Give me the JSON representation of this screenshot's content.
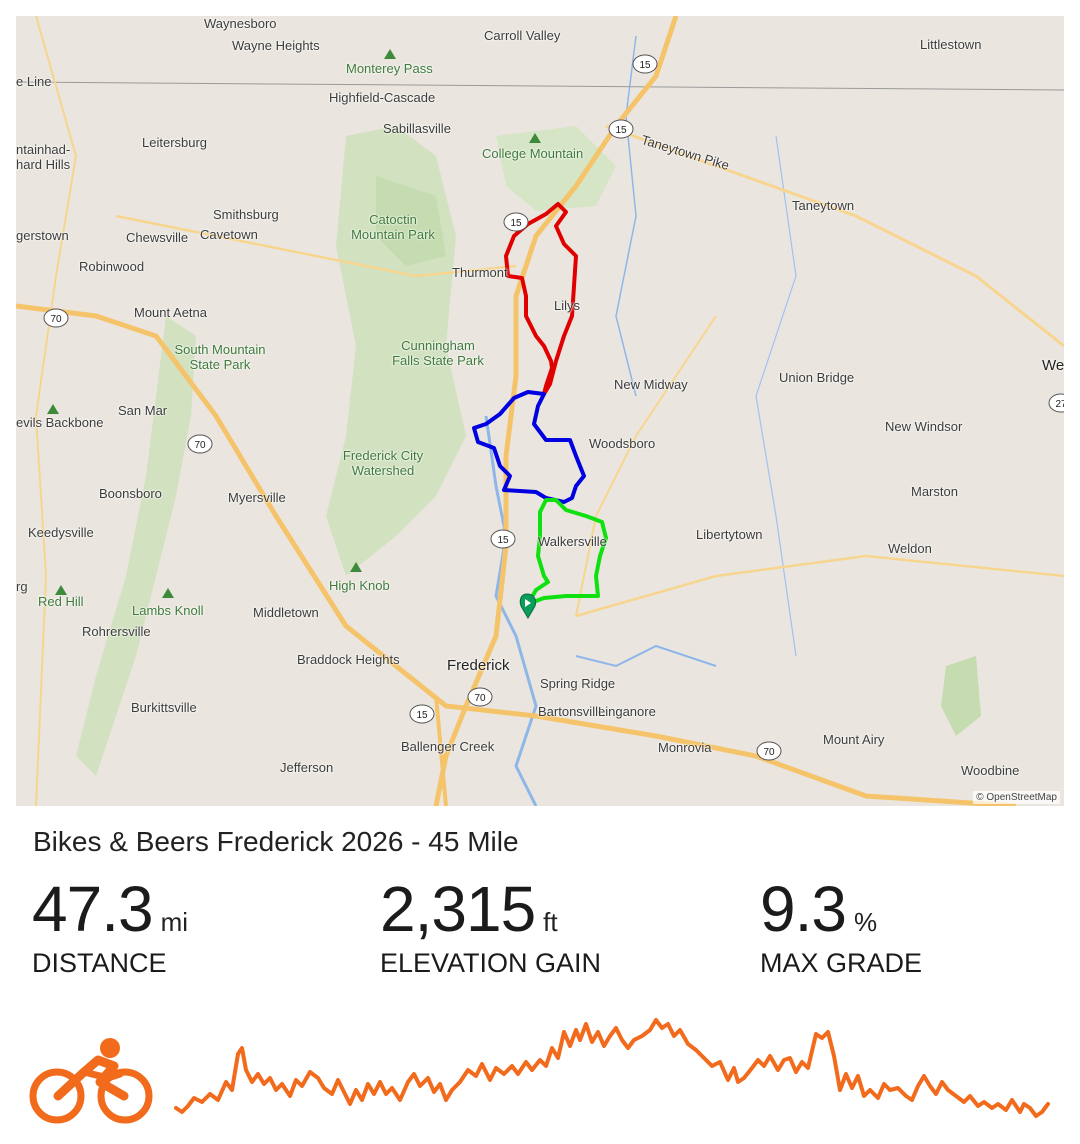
{
  "map": {
    "attribution": "© OpenStreetMap",
    "places": [
      "Waynesboro",
      "Wayne Heights",
      "Carroll Valley",
      "Littlestown",
      "Monterey Pass",
      "Highfield-Cascade",
      "Sabillasville",
      "College Mountain",
      "Taneytown Pike",
      "Leitersburg",
      "Smithsburg",
      "Cavetown",
      "Chewsville",
      "Catoctin Mountain Park",
      "Taneytown",
      "Thurmont",
      "Robinwood",
      "Mount Aetna",
      "Cunningham Falls State Park",
      "South Mountain State Park",
      "New Midway",
      "Union Bridge",
      "San Mar",
      "Woodsboro",
      "New Windsor",
      "Frederick City Watershed",
      "Boonsboro",
      "Myersville",
      "Marston",
      "Keedysville",
      "Walkersville",
      "Libertytown",
      "Weldon",
      "High Knob",
      "Red Hill",
      "Lambs Knoll",
      "Middletown",
      "Rohrersville",
      "Braddock Heights",
      "Frederick",
      "Spring Ridge",
      "Burkittsville",
      "Bartonsville",
      "Linganore",
      "Ballenger Creek",
      "Monrovia",
      "Mount Airy",
      "Jefferson",
      "Woodbine",
      "gerstown",
      "ntainhad-",
      "hard Hills",
      "e Line",
      "evils Backbone",
      "rg",
      "We",
      "Lilys"
    ],
    "route_colors": {
      "north_loop": "#e00000",
      "middle_loop": "#0000e0",
      "south_loop": "#10e010"
    },
    "road_color": "#f5c46a",
    "start_marker_color": "#0b9d5a",
    "highways": [
      "15",
      "15",
      "15",
      "15",
      "70",
      "70",
      "70",
      "70",
      "27"
    ]
  },
  "route": {
    "title": "Bikes & Beers Frederick 2026 - 45 Mile",
    "distance_value": "47.3",
    "distance_unit": "mi",
    "distance_label": "DISTANCE",
    "elevation_value": "2,315",
    "elevation_unit": "ft",
    "elevation_label": "ELEVATION GAIN",
    "grade_value": "9.3",
    "grade_unit": "%",
    "grade_label": "MAX GRADE"
  },
  "profile": {
    "color": "#f26a1b",
    "icon": "cyclist-icon"
  }
}
